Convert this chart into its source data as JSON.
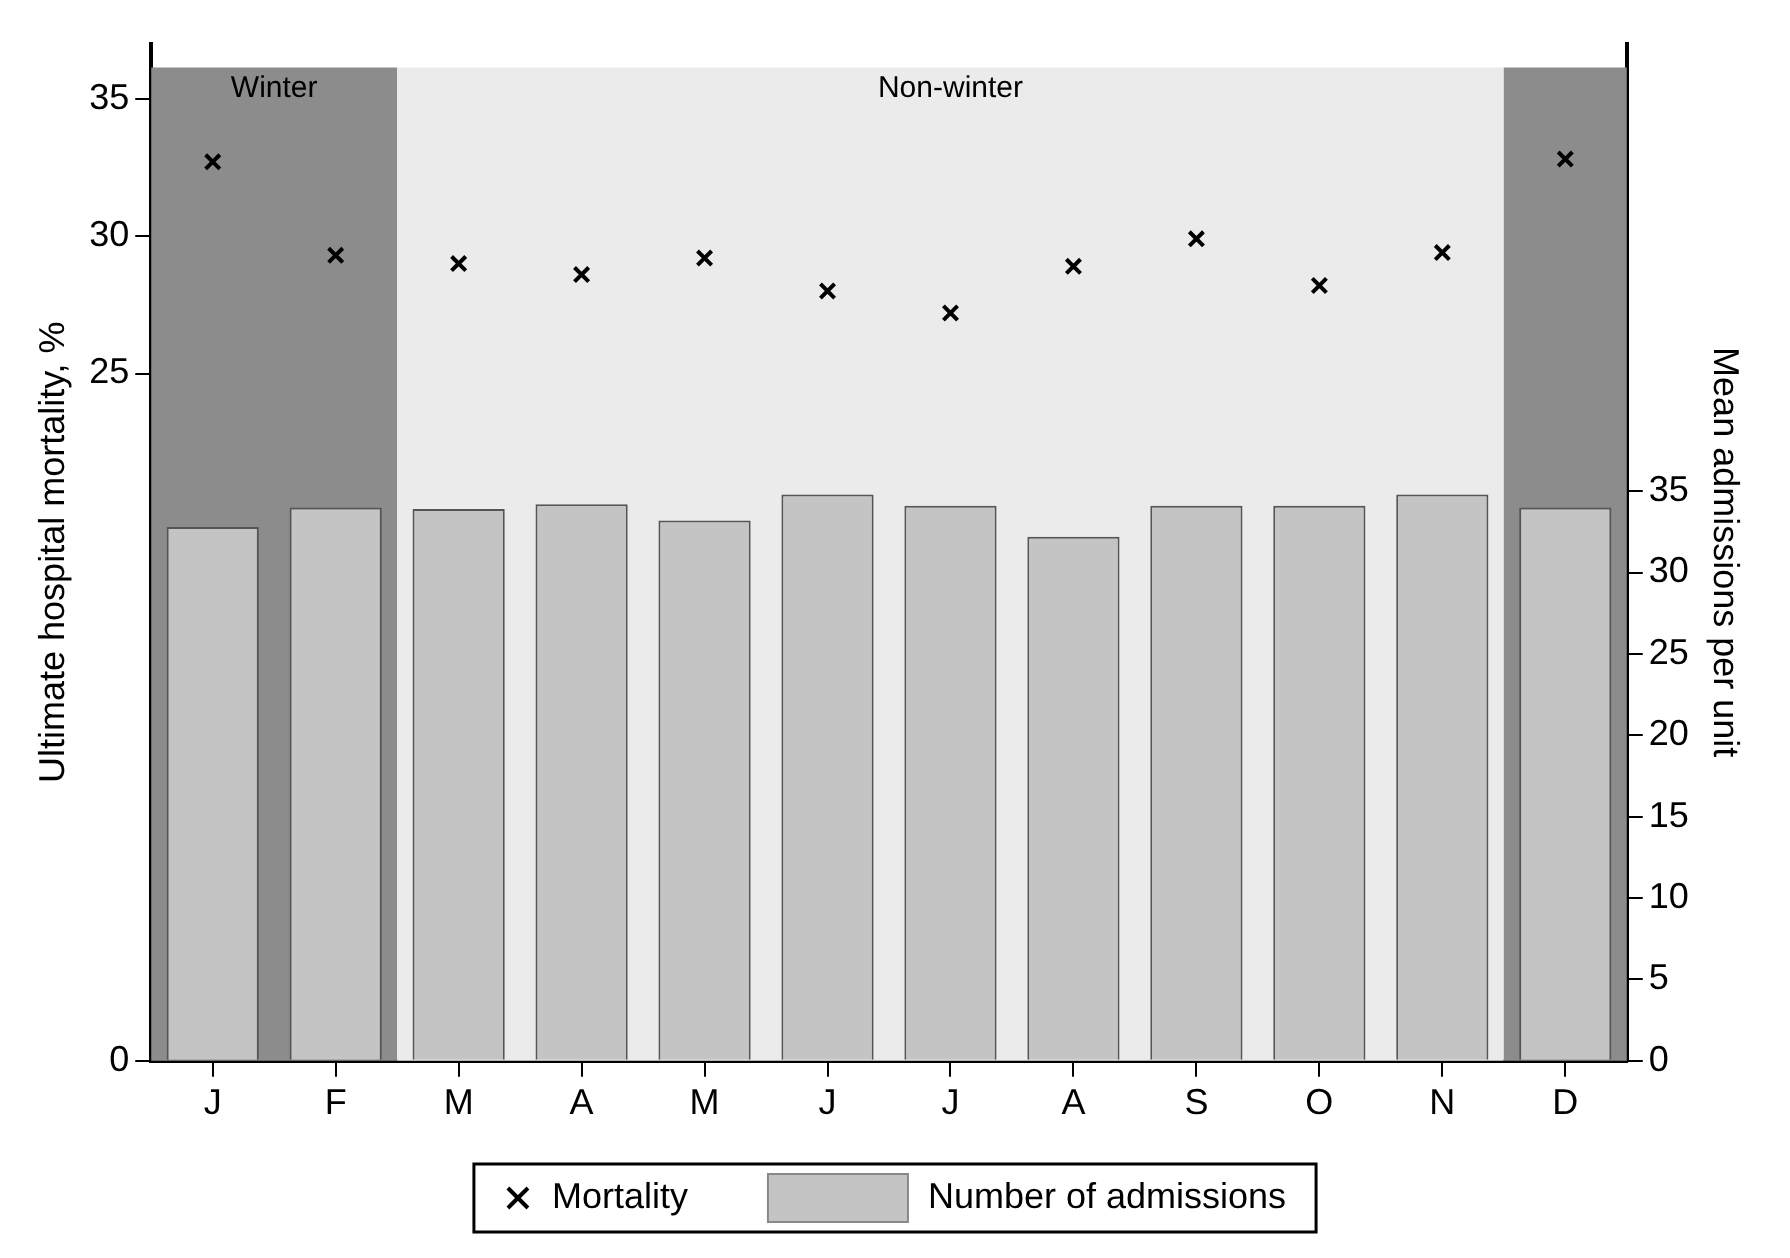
{
  "chart_data": {
    "type": "bar",
    "xlabel": null,
    "ylabel": "Ultimate hospital mortality, %",
    "y2label": "Mean admissions per unit",
    "categories": [
      "J",
      "F",
      "M",
      "A",
      "M",
      "J",
      "J",
      "A",
      "S",
      "O",
      "N",
      "D"
    ],
    "series": [
      {
        "name": "Mortality",
        "type": "scatter",
        "axis": "y",
        "color": "#000000",
        "marker": "cross",
        "values": [
          32.7,
          29.3,
          29.0,
          28.6,
          29.2,
          28.0,
          27.2,
          28.9,
          29.9,
          28.2,
          29.4,
          32.8
        ]
      },
      {
        "name": "Number of admissions",
        "axis": "y2",
        "color": "#c4c4c4",
        "values": [
          32.8,
          34.0,
          33.9,
          34.2,
          33.2,
          34.8,
          34.1,
          32.2,
          34.1,
          34.1,
          34.8,
          34.0
        ]
      }
    ],
    "ylim": [
      0,
      37
    ],
    "yticks": [
      0,
      25,
      30,
      35
    ],
    "y2lim": [
      0,
      62.5
    ],
    "y2ticks": [
      0,
      5,
      10,
      15,
      20,
      25,
      30,
      35
    ],
    "bands": [
      {
        "axis": "x",
        "from": "J",
        "to": "F",
        "label": "Winter",
        "color": "#8c8c8c"
      },
      {
        "axis": "x",
        "from": "M",
        "to": "N",
        "label": "Non-winter",
        "color": "#ebebeb"
      },
      {
        "axis": "x",
        "from": "D",
        "to": "D",
        "label": null,
        "color": "#8c8c8c"
      }
    ],
    "grid": false,
    "legend": "bottom"
  }
}
